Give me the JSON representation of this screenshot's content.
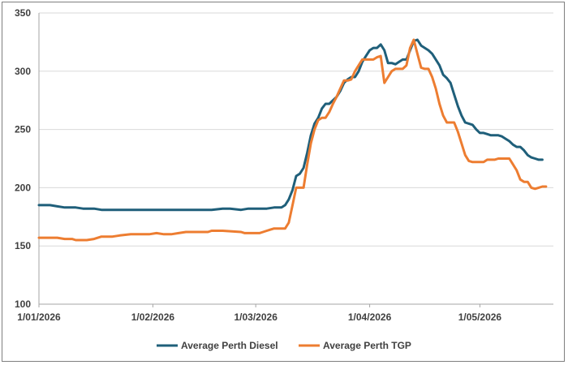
{
  "chart_data": {
    "type": "line",
    "title": "",
    "xlabel": "",
    "ylabel": "",
    "ylim": [
      100,
      350
    ],
    "yticks": [
      100,
      150,
      200,
      250,
      300,
      350
    ],
    "grid": true,
    "legend_position": "bottom",
    "x_tick_labels": [
      "1/01/2026",
      "1/02/2026",
      "1/03/2026",
      "1/04/2026",
      "1/05/2026"
    ],
    "x_tick_days": [
      0,
      31,
      59,
      90,
      120
    ],
    "x_range_days": [
      0,
      140
    ],
    "series": [
      {
        "name": "Average Perth Diesel",
        "color": "#1f5f7a",
        "points": [
          [
            0,
            185
          ],
          [
            3,
            185
          ],
          [
            5,
            184
          ],
          [
            7,
            183
          ],
          [
            10,
            183
          ],
          [
            12,
            182
          ],
          [
            15,
            182
          ],
          [
            17,
            181
          ],
          [
            20,
            181
          ],
          [
            25,
            181
          ],
          [
            30,
            181
          ],
          [
            35,
            181
          ],
          [
            40,
            181
          ],
          [
            45,
            181
          ],
          [
            47,
            181
          ],
          [
            50,
            182
          ],
          [
            52,
            182
          ],
          [
            55,
            181
          ],
          [
            57,
            182
          ],
          [
            60,
            182
          ],
          [
            62,
            182
          ],
          [
            64,
            183
          ],
          [
            66,
            183
          ],
          [
            67,
            185
          ],
          [
            68,
            190
          ],
          [
            69,
            198
          ],
          [
            70,
            210
          ],
          [
            71,
            212
          ],
          [
            72,
            217
          ],
          [
            73,
            230
          ],
          [
            74,
            245
          ],
          [
            75,
            255
          ],
          [
            76,
            260
          ],
          [
            77,
            268
          ],
          [
            78,
            272
          ],
          [
            79,
            272
          ],
          [
            80,
            275
          ],
          [
            81,
            278
          ],
          [
            82,
            283
          ],
          [
            83,
            290
          ],
          [
            84,
            293
          ],
          [
            85,
            295
          ],
          [
            86,
            295
          ],
          [
            87,
            300
          ],
          [
            88,
            308
          ],
          [
            89,
            313
          ],
          [
            90,
            318
          ],
          [
            91,
            320
          ],
          [
            92,
            320
          ],
          [
            93,
            323
          ],
          [
            94,
            318
          ],
          [
            95,
            307
          ],
          [
            96,
            307
          ],
          [
            97,
            306
          ],
          [
            98,
            308
          ],
          [
            99,
            310
          ],
          [
            100,
            310
          ],
          [
            101,
            318
          ],
          [
            102,
            326
          ],
          [
            103,
            327
          ],
          [
            104,
            322
          ],
          [
            105,
            320
          ],
          [
            106,
            318
          ],
          [
            107,
            315
          ],
          [
            108,
            310
          ],
          [
            109,
            305
          ],
          [
            110,
            297
          ],
          [
            111,
            294
          ],
          [
            112,
            290
          ],
          [
            113,
            280
          ],
          [
            114,
            270
          ],
          [
            115,
            262
          ],
          [
            116,
            256
          ],
          [
            117,
            255
          ],
          [
            118,
            254
          ],
          [
            119,
            250
          ],
          [
            120,
            247
          ],
          [
            121,
            247
          ],
          [
            122,
            246
          ],
          [
            123,
            245
          ],
          [
            124,
            245
          ],
          [
            125,
            245
          ],
          [
            126,
            244
          ],
          [
            127,
            242
          ],
          [
            128,
            240
          ],
          [
            129,
            237
          ],
          [
            130,
            235
          ],
          [
            131,
            235
          ],
          [
            132,
            232
          ],
          [
            133,
            228
          ],
          [
            134,
            226
          ],
          [
            135,
            225
          ],
          [
            136,
            224
          ],
          [
            137,
            224
          ]
        ]
      },
      {
        "name": "Average Perth TGP",
        "color": "#ed7d31",
        "points": [
          [
            0,
            157
          ],
          [
            3,
            157
          ],
          [
            5,
            157
          ],
          [
            7,
            156
          ],
          [
            9,
            156
          ],
          [
            10,
            155
          ],
          [
            13,
            155
          ],
          [
            15,
            156
          ],
          [
            17,
            158
          ],
          [
            20,
            158
          ],
          [
            22,
            159
          ],
          [
            25,
            160
          ],
          [
            30,
            160
          ],
          [
            32,
            161
          ],
          [
            34,
            160
          ],
          [
            36,
            160
          ],
          [
            38,
            161
          ],
          [
            40,
            162
          ],
          [
            45,
            162
          ],
          [
            46,
            162
          ],
          [
            47,
            163
          ],
          [
            50,
            163
          ],
          [
            55,
            162
          ],
          [
            56,
            161
          ],
          [
            60,
            161
          ],
          [
            61,
            162
          ],
          [
            62,
            163
          ],
          [
            63,
            164
          ],
          [
            64,
            165
          ],
          [
            66,
            165
          ],
          [
            67,
            165
          ],
          [
            68,
            170
          ],
          [
            69,
            185
          ],
          [
            70,
            200
          ],
          [
            71,
            200
          ],
          [
            72,
            200
          ],
          [
            73,
            220
          ],
          [
            74,
            238
          ],
          [
            75,
            250
          ],
          [
            76,
            258
          ],
          [
            77,
            260
          ],
          [
            78,
            260
          ],
          [
            79,
            265
          ],
          [
            80,
            272
          ],
          [
            81,
            278
          ],
          [
            82,
            285
          ],
          [
            83,
            292
          ],
          [
            84,
            292
          ],
          [
            85,
            293
          ],
          [
            86,
            300
          ],
          [
            87,
            305
          ],
          [
            88,
            310
          ],
          [
            89,
            310
          ],
          [
            90,
            310
          ],
          [
            91,
            310
          ],
          [
            92,
            312
          ],
          [
            93,
            313
          ],
          [
            94,
            290
          ],
          [
            95,
            295
          ],
          [
            96,
            300
          ],
          [
            97,
            302
          ],
          [
            98,
            302
          ],
          [
            99,
            302
          ],
          [
            100,
            305
          ],
          [
            101,
            320
          ],
          [
            102,
            327
          ],
          [
            103,
            315
          ],
          [
            104,
            303
          ],
          [
            105,
            302
          ],
          [
            106,
            302
          ],
          [
            107,
            295
          ],
          [
            108,
            285
          ],
          [
            109,
            272
          ],
          [
            110,
            262
          ],
          [
            111,
            256
          ],
          [
            112,
            256
          ],
          [
            113,
            256
          ],
          [
            114,
            248
          ],
          [
            115,
            238
          ],
          [
            116,
            228
          ],
          [
            117,
            223
          ],
          [
            118,
            222
          ],
          [
            119,
            222
          ],
          [
            120,
            222
          ],
          [
            121,
            222
          ],
          [
            122,
            224
          ],
          [
            123,
            224
          ],
          [
            124,
            224
          ],
          [
            125,
            225
          ],
          [
            126,
            225
          ],
          [
            127,
            225
          ],
          [
            128,
            225
          ],
          [
            129,
            220
          ],
          [
            130,
            215
          ],
          [
            131,
            207
          ],
          [
            132,
            205
          ],
          [
            133,
            205
          ],
          [
            134,
            200
          ],
          [
            135,
            199
          ],
          [
            136,
            200
          ],
          [
            137,
            201
          ],
          [
            138,
            201
          ]
        ]
      }
    ]
  }
}
